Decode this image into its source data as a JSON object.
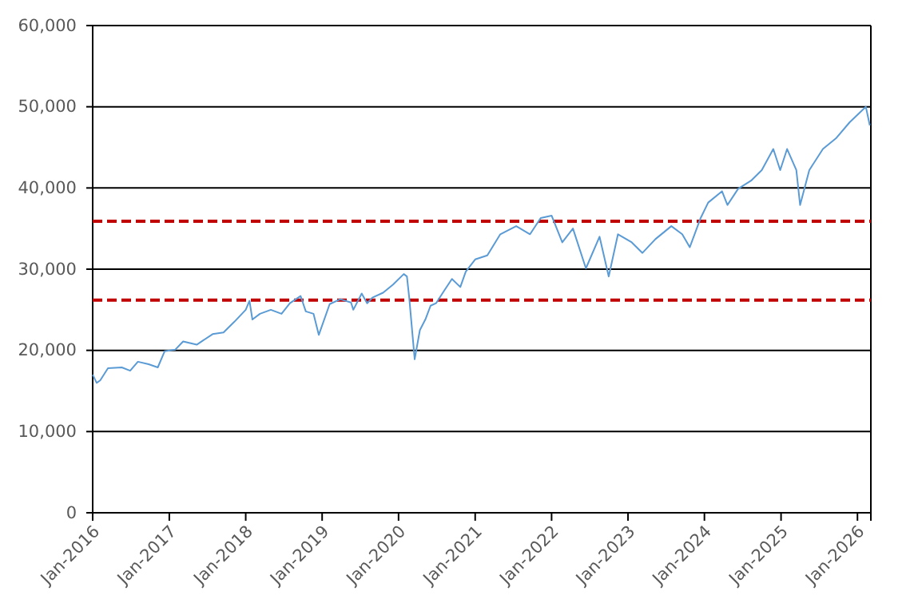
{
  "chart_data": {
    "type": "line",
    "x": [
      "2016-01-01",
      "2016-01-20",
      "2016-02-06",
      "2016-03-14",
      "2016-05-19",
      "2016-06-28",
      "2016-08-04",
      "2016-09-24",
      "2016-11-07",
      "2016-12-10",
      "2017-01-30",
      "2017-03-08",
      "2017-05-12",
      "2017-07-27",
      "2017-09-17",
      "2017-11-07",
      "2018-01-01",
      "2018-01-19",
      "2018-02-02",
      "2018-03-10",
      "2018-05-01",
      "2018-06-21",
      "2018-07-31",
      "2018-09-20",
      "2018-10-15",
      "2018-11-21",
      "2018-12-16",
      "2019-02-06",
      "2019-03-29",
      "2019-05-19",
      "2019-05-30",
      "2019-07-09",
      "2019-08-04",
      "2019-08-29",
      "2019-10-19",
      "2019-12-06",
      "2020-01-26",
      "2020-02-10",
      "2020-02-21",
      "2020-03-18",
      "2020-04-12",
      "2020-05-08",
      "2020-06-02",
      "2020-06-28",
      "2020-08-07",
      "2020-09-12",
      "2020-10-22",
      "2020-11-17",
      "2021-01-01",
      "2021-02-28",
      "2021-05-01",
      "2021-07-16",
      "2021-09-20",
      "2021-11-10",
      "2022-01-01",
      "2022-02-21",
      "2022-04-13",
      "2022-06-14",
      "2022-08-18",
      "2022-10-01",
      "2022-11-14",
      "2023-01-19",
      "2023-03-11",
      "2023-05-12",
      "2023-07-27",
      "2023-09-17",
      "2023-10-23",
      "2023-12-14",
      "2024-01-19",
      "2024-03-25",
      "2024-04-20",
      "2024-06-10",
      "2024-08-11",
      "2024-10-01",
      "2024-11-25",
      "2024-12-28",
      "2025-01-30",
      "2025-03-15",
      "2025-04-02",
      "2025-05-16",
      "2025-07-20",
      "2025-09-20",
      "2025-11-25",
      "2026-02-10",
      "2026-03-01"
    ],
    "series": [
      {
        "color": "#5b9bd5",
        "values": [
          17000,
          16000,
          16300,
          17800,
          17900,
          17500,
          18600,
          18300,
          17900,
          19900,
          20100,
          21100,
          20700,
          22000,
          22200,
          23500,
          25000,
          26100,
          23800,
          24500,
          25000,
          24500,
          25800,
          26700,
          24800,
          24500,
          21900,
          25700,
          26300,
          25900,
          25000,
          27000,
          25800,
          26500,
          27100,
          28100,
          29400,
          29100,
          26500,
          18900,
          22500,
          23800,
          25500,
          25800,
          27400,
          28800,
          27800,
          29700,
          31200,
          31700,
          34300,
          35300,
          34300,
          36300,
          36600,
          33300,
          35000,
          30100,
          34000,
          29100,
          34300,
          33300,
          32000,
          33700,
          35300,
          34300,
          32700,
          36300,
          38200,
          39600,
          37900,
          39900,
          40900,
          42200,
          44800,
          42200,
          44800,
          42200,
          37900,
          42200,
          44800,
          46100,
          48100,
          50000,
          47700
        ]
      }
    ],
    "xlim": [
      "2016-01-01",
      "2026-03-06"
    ],
    "xticks": [
      {
        "value": "2016-01-01",
        "label": "Jan-2016"
      },
      {
        "value": "2017-01-01",
        "label": "Jan-2017"
      },
      {
        "value": "2018-01-01",
        "label": "Jan-2018"
      },
      {
        "value": "2019-01-01",
        "label": "Jan-2019"
      },
      {
        "value": "2020-01-01",
        "label": "Jan-2020"
      },
      {
        "value": "2021-01-01",
        "label": "Jan-2021"
      },
      {
        "value": "2022-01-01",
        "label": "Jan-2022"
      },
      {
        "value": "2023-01-01",
        "label": "Jan-2023"
      },
      {
        "value": "2024-01-01",
        "label": "Jan-2024"
      },
      {
        "value": "2025-01-01",
        "label": "Jan-2025"
      },
      {
        "value": "2026-01-01",
        "label": "Jan-2026"
      }
    ],
    "ylim": [
      0,
      60000
    ],
    "yticks": [
      {
        "value": 0,
        "label": "0"
      },
      {
        "value": 10000,
        "label": "10,000"
      },
      {
        "value": 20000,
        "label": "20,000"
      },
      {
        "value": 30000,
        "label": "30,000"
      },
      {
        "value": 40000,
        "label": "40,000"
      },
      {
        "value": 50000,
        "label": "50,000"
      },
      {
        "value": 60000,
        "label": "60,000"
      }
    ],
    "grid": "y",
    "ref_lines": [
      {
        "axis": "y",
        "value": 35900,
        "color": "#c00000",
        "line_style": "dashed"
      },
      {
        "axis": "y",
        "value": 26200,
        "color": "#c00000",
        "line_style": "dashed"
      }
    ]
  }
}
